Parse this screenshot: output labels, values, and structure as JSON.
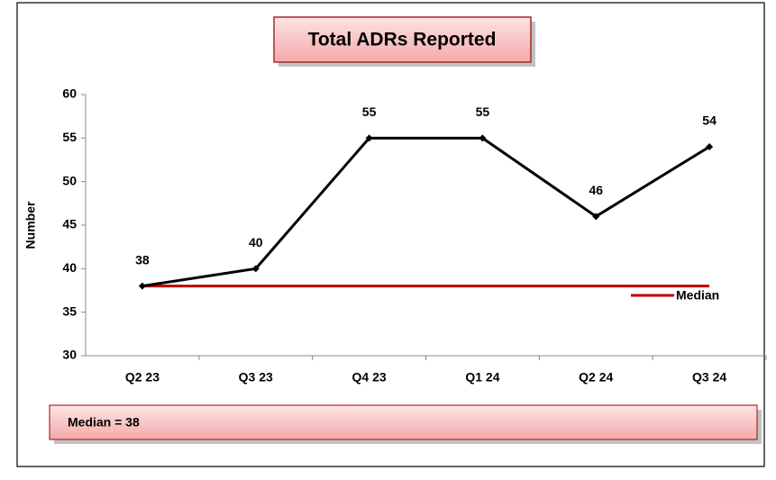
{
  "chart_data": {
    "type": "line",
    "title": "Total ADRs Reported",
    "y_label": "Number",
    "categories": [
      "Q2 23",
      "Q3 23",
      "Q4 23",
      "Q1 24",
      "Q2 24",
      "Q3 24"
    ],
    "series": [
      {
        "color": "#000000",
        "values": [
          38,
          40,
          55,
          55,
          46,
          54
        ]
      },
      {
        "name": "Median",
        "color": "#c00000",
        "values": [
          38,
          38,
          38,
          38,
          38,
          38
        ]
      }
    ],
    "ylim": [
      30,
      60
    ],
    "yticks": [
      30,
      35,
      40,
      45,
      50,
      55,
      60
    ],
    "grid": false,
    "legend": "right",
    "annotation": "Median = 38"
  }
}
